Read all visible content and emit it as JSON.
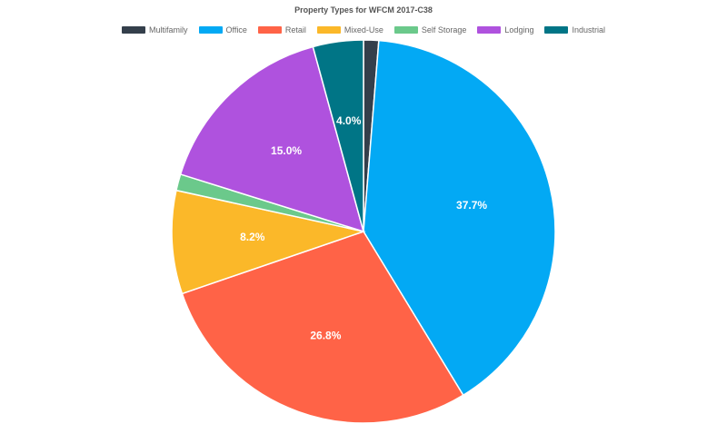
{
  "chart_data": {
    "type": "pie",
    "title": "Property Types for WFCM 2017-C38",
    "categories": [
      "Multifamily",
      "Office",
      "Retail",
      "Mixed-Use",
      "Self Storage",
      "Lodging",
      "Industrial"
    ],
    "values": [
      1.2,
      37.7,
      26.8,
      8.2,
      1.3,
      15.0,
      4.0
    ],
    "data_labels": [
      "",
      "37.7%",
      "26.8%",
      "8.2%",
      "",
      "15.0%",
      "4.0%"
    ],
    "colors": [
      "#343f4b",
      "#03a9f4",
      "#ff6347",
      "#fbb829",
      "#6bc98b",
      "#af52de",
      "#007586"
    ],
    "legend_position": "top"
  }
}
